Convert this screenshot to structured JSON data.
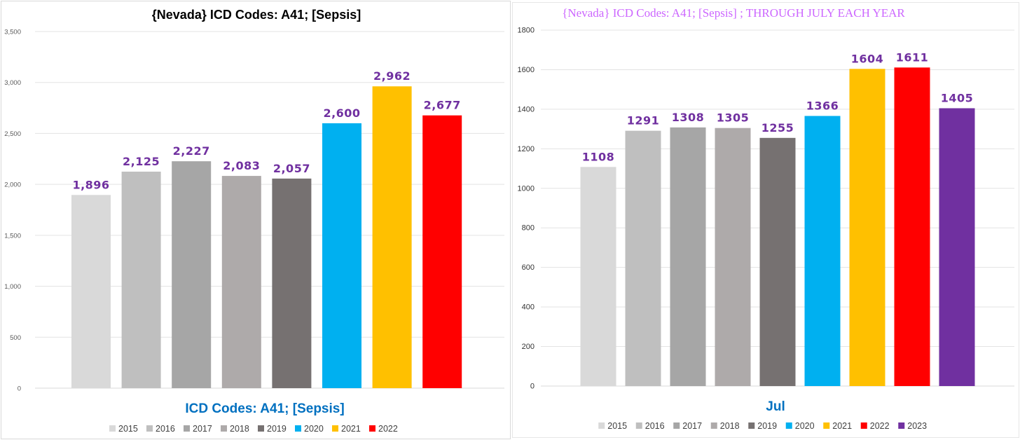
{
  "chart_data": [
    {
      "type": "bar",
      "title": "{Nevada}  ICD Codes: A41;  [Sepsis]",
      "xlabel": "ICD Codes: A41;  [Sepsis]",
      "ylabel": "",
      "ylim": [
        0,
        3500
      ],
      "yticks": [
        0,
        500,
        1000,
        1500,
        2000,
        2500,
        3000,
        3500
      ],
      "ytick_labels": [
        "0",
        "500",
        "1,000",
        "1,500",
        "2,000",
        "2,500",
        "3,000",
        "3,500"
      ],
      "categories": [
        "2015",
        "2016",
        "2017",
        "2018",
        "2019",
        "2020",
        "2021",
        "2022"
      ],
      "values": [
        1896,
        2125,
        2227,
        2083,
        2057,
        2600,
        2962,
        2677
      ],
      "data_labels": [
        "1,896",
        "2,125",
        "2,227",
        "2,083",
        "2,057",
        "2,600",
        "2,962",
        "2,677"
      ],
      "colors": [
        "#d9d9d9",
        "#bfbfbf",
        "#a6a6a6",
        "#aeaaaa",
        "#767171",
        "#00b0f0",
        "#ffc000",
        "#ff0000"
      ],
      "label_color": "#7030a0",
      "xlabel_color": "#0070c0",
      "grid": true,
      "legend": "bottom"
    },
    {
      "type": "bar",
      "title": "{Nevada}  ICD Codes: A41;  [Sepsis] ; THROUGH JULY EACH YEAR",
      "xlabel": "Jul",
      "ylabel": "",
      "ylim": [
        0,
        1800
      ],
      "yticks": [
        0,
        200,
        400,
        600,
        800,
        1000,
        1200,
        1400,
        1600,
        1800
      ],
      "ytick_labels": [
        "0",
        "200",
        "400",
        "600",
        "800",
        "1000",
        "1200",
        "1400",
        "1600",
        "1800"
      ],
      "categories": [
        "2015",
        "2016",
        "2017",
        "2018",
        "2019",
        "2020",
        "2021",
        "2022",
        "2023"
      ],
      "values": [
        1108,
        1291,
        1308,
        1305,
        1255,
        1366,
        1604,
        1611,
        1405
      ],
      "data_labels": [
        "1108",
        "1291",
        "1308",
        "1305",
        "1255",
        "1366",
        "1604",
        "1611",
        "1405"
      ],
      "colors": [
        "#d9d9d9",
        "#bfbfbf",
        "#a6a6a6",
        "#aeaaaa",
        "#767171",
        "#00b0f0",
        "#ffc000",
        "#ff0000",
        "#7030a0"
      ],
      "label_color": "#7030a0",
      "title_color": "#cc66ff",
      "xlabel_color": "#0070c0",
      "grid": true,
      "legend": "bottom"
    }
  ]
}
